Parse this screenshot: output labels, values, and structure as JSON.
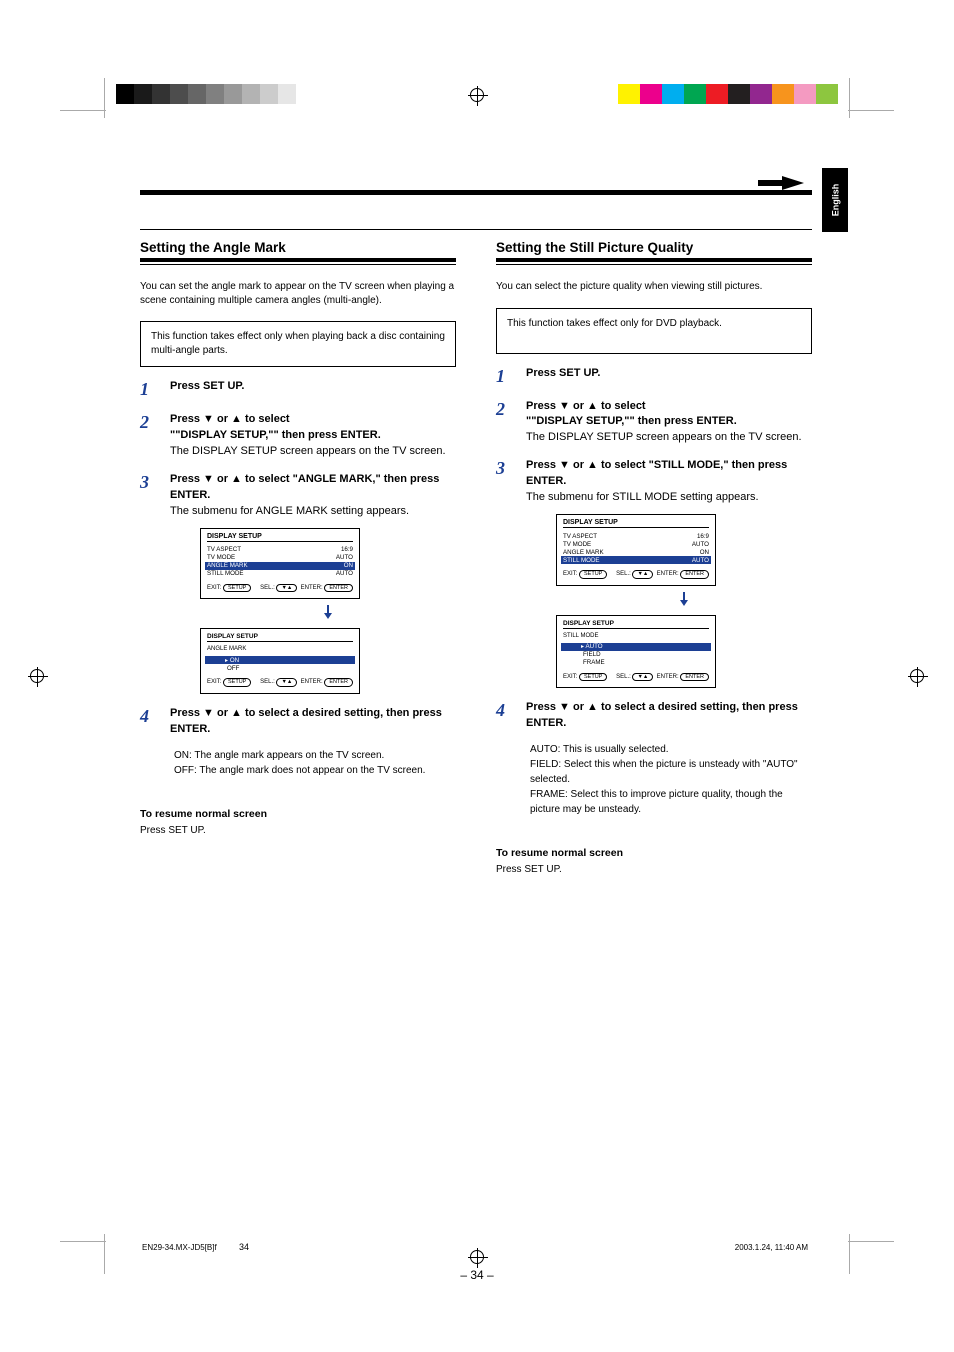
{
  "lang_tab": "English",
  "page_number": "– 34 –",
  "footer_file": "EN29-34.MX-JD5[B]f",
  "footer_page": "34",
  "footer_date": "2003.1.24, 11:40 AM",
  "strip_left_colors": [
    "#000000",
    "#1a1a1a",
    "#333333",
    "#4d4d4d",
    "#666666",
    "#808080",
    "#999999",
    "#b3b3b3",
    "#cccccc",
    "#e6e6e6"
  ],
  "strip_right_colors": [
    "#fff200",
    "#ec008c",
    "#00aeef",
    "#00a651",
    "#ed1c24",
    "#231f20",
    "#92278f",
    "#f7941d",
    "#f49ac1",
    "#8dc63f"
  ],
  "left": {
    "title": "Setting the Angle Mark",
    "intro": "You can set the angle mark to appear on the TV screen when playing a scene containing multiple camera angles (multi-angle).",
    "note": "This function takes effect only when playing back a disc containing multi-angle parts.",
    "steps": {
      "s1": "Press SET UP.",
      "s2a": "Press ▼ or ▲ to select",
      "s2b": "\"\"DISPLAY SETUP,\"\" then press ENTER.",
      "s2c": "The DISPLAY SETUP screen appears on the TV screen.",
      "s3a": "Press ▼ or ▲ to select \"ANGLE MARK,\" then press ENTER.",
      "s3b": "The submenu for ANGLE MARK setting appears.",
      "s4a": "Press ▼ or ▲ to select a desired setting, then press ENTER.",
      "s4b": "ON: The angle mark appears on the TV screen.",
      "s4c": "OFF: The angle mark does not appear on the TV screen."
    },
    "screen1": {
      "title": "DISPLAY SETUP",
      "rows": [
        [
          "TV ASPECT",
          "16:9"
        ],
        [
          "TV MODE",
          "AUTO"
        ],
        [
          "ANGLE MARK",
          "ON"
        ],
        [
          "STILL MODE",
          "AUTO"
        ]
      ],
      "hl_index": 2,
      "exit": "EXIT: [SETUP]",
      "select": "SEL.: [▲▼]",
      "enter": "ENTER: [ENTER]"
    },
    "screen2": {
      "title": "DISPLAY SETUP",
      "sub_label": "ANGLE MARK",
      "options": [
        "ON",
        "OFF"
      ],
      "hl_index": 0,
      "exit": "EXIT: [SETUP]",
      "select": "SEL.: [▲▼]",
      "enter": "ENTER: [ENTER]"
    },
    "resume_title": "To resume normal screen",
    "resume_body": "Press SET UP."
  },
  "right": {
    "title": "Setting the Still Picture Quality",
    "intro": "You can select the picture quality when viewing still pictures.",
    "note": "This function takes effect only for DVD playback.",
    "steps": {
      "s1": "Press SET UP.",
      "s2a": "Press ▼ or ▲ to select",
      "s2b": "\"\"DISPLAY SETUP,\"\" then press ENTER.",
      "s2c": "The DISPLAY SETUP screen appears on the TV screen.",
      "s3a": "Press ▼ or ▲ to select \"STILL MODE,\" then press ENTER.",
      "s3b": "The submenu for STILL MODE setting appears.",
      "s4a": "Press ▼ or ▲ to select a desired setting, then press ENTER.",
      "s4b": "AUTO: This is usually selected.",
      "s4c": "FIELD: Select this when the picture is unsteady with \"AUTO\" selected.",
      "s4d": "FRAME: Select this to improve picture quality, though the picture may be unsteady."
    },
    "screen1": {
      "title": "DISPLAY SETUP",
      "rows": [
        [
          "TV ASPECT",
          "16:9"
        ],
        [
          "TV MODE",
          "AUTO"
        ],
        [
          "ANGLE MARK",
          "ON"
        ],
        [
          "STILL MODE",
          "AUTO"
        ]
      ],
      "hl_index": 3,
      "exit": "EXIT: [SETUP]",
      "select": "SEL.: [▲▼]",
      "enter": "ENTER: [ENTER]"
    },
    "screen2": {
      "title": "DISPLAY SETUP",
      "sub_label": "STILL MODE",
      "options": [
        "AUTO",
        "FIELD",
        "FRAME"
      ],
      "hl_index": 0,
      "exit": "EXIT: [SETUP]",
      "select": "SEL.: [▲▼]",
      "enter": "ENTER: [ENTER]"
    },
    "resume_title": "To resume normal screen",
    "resume_body": "Press SET UP."
  }
}
